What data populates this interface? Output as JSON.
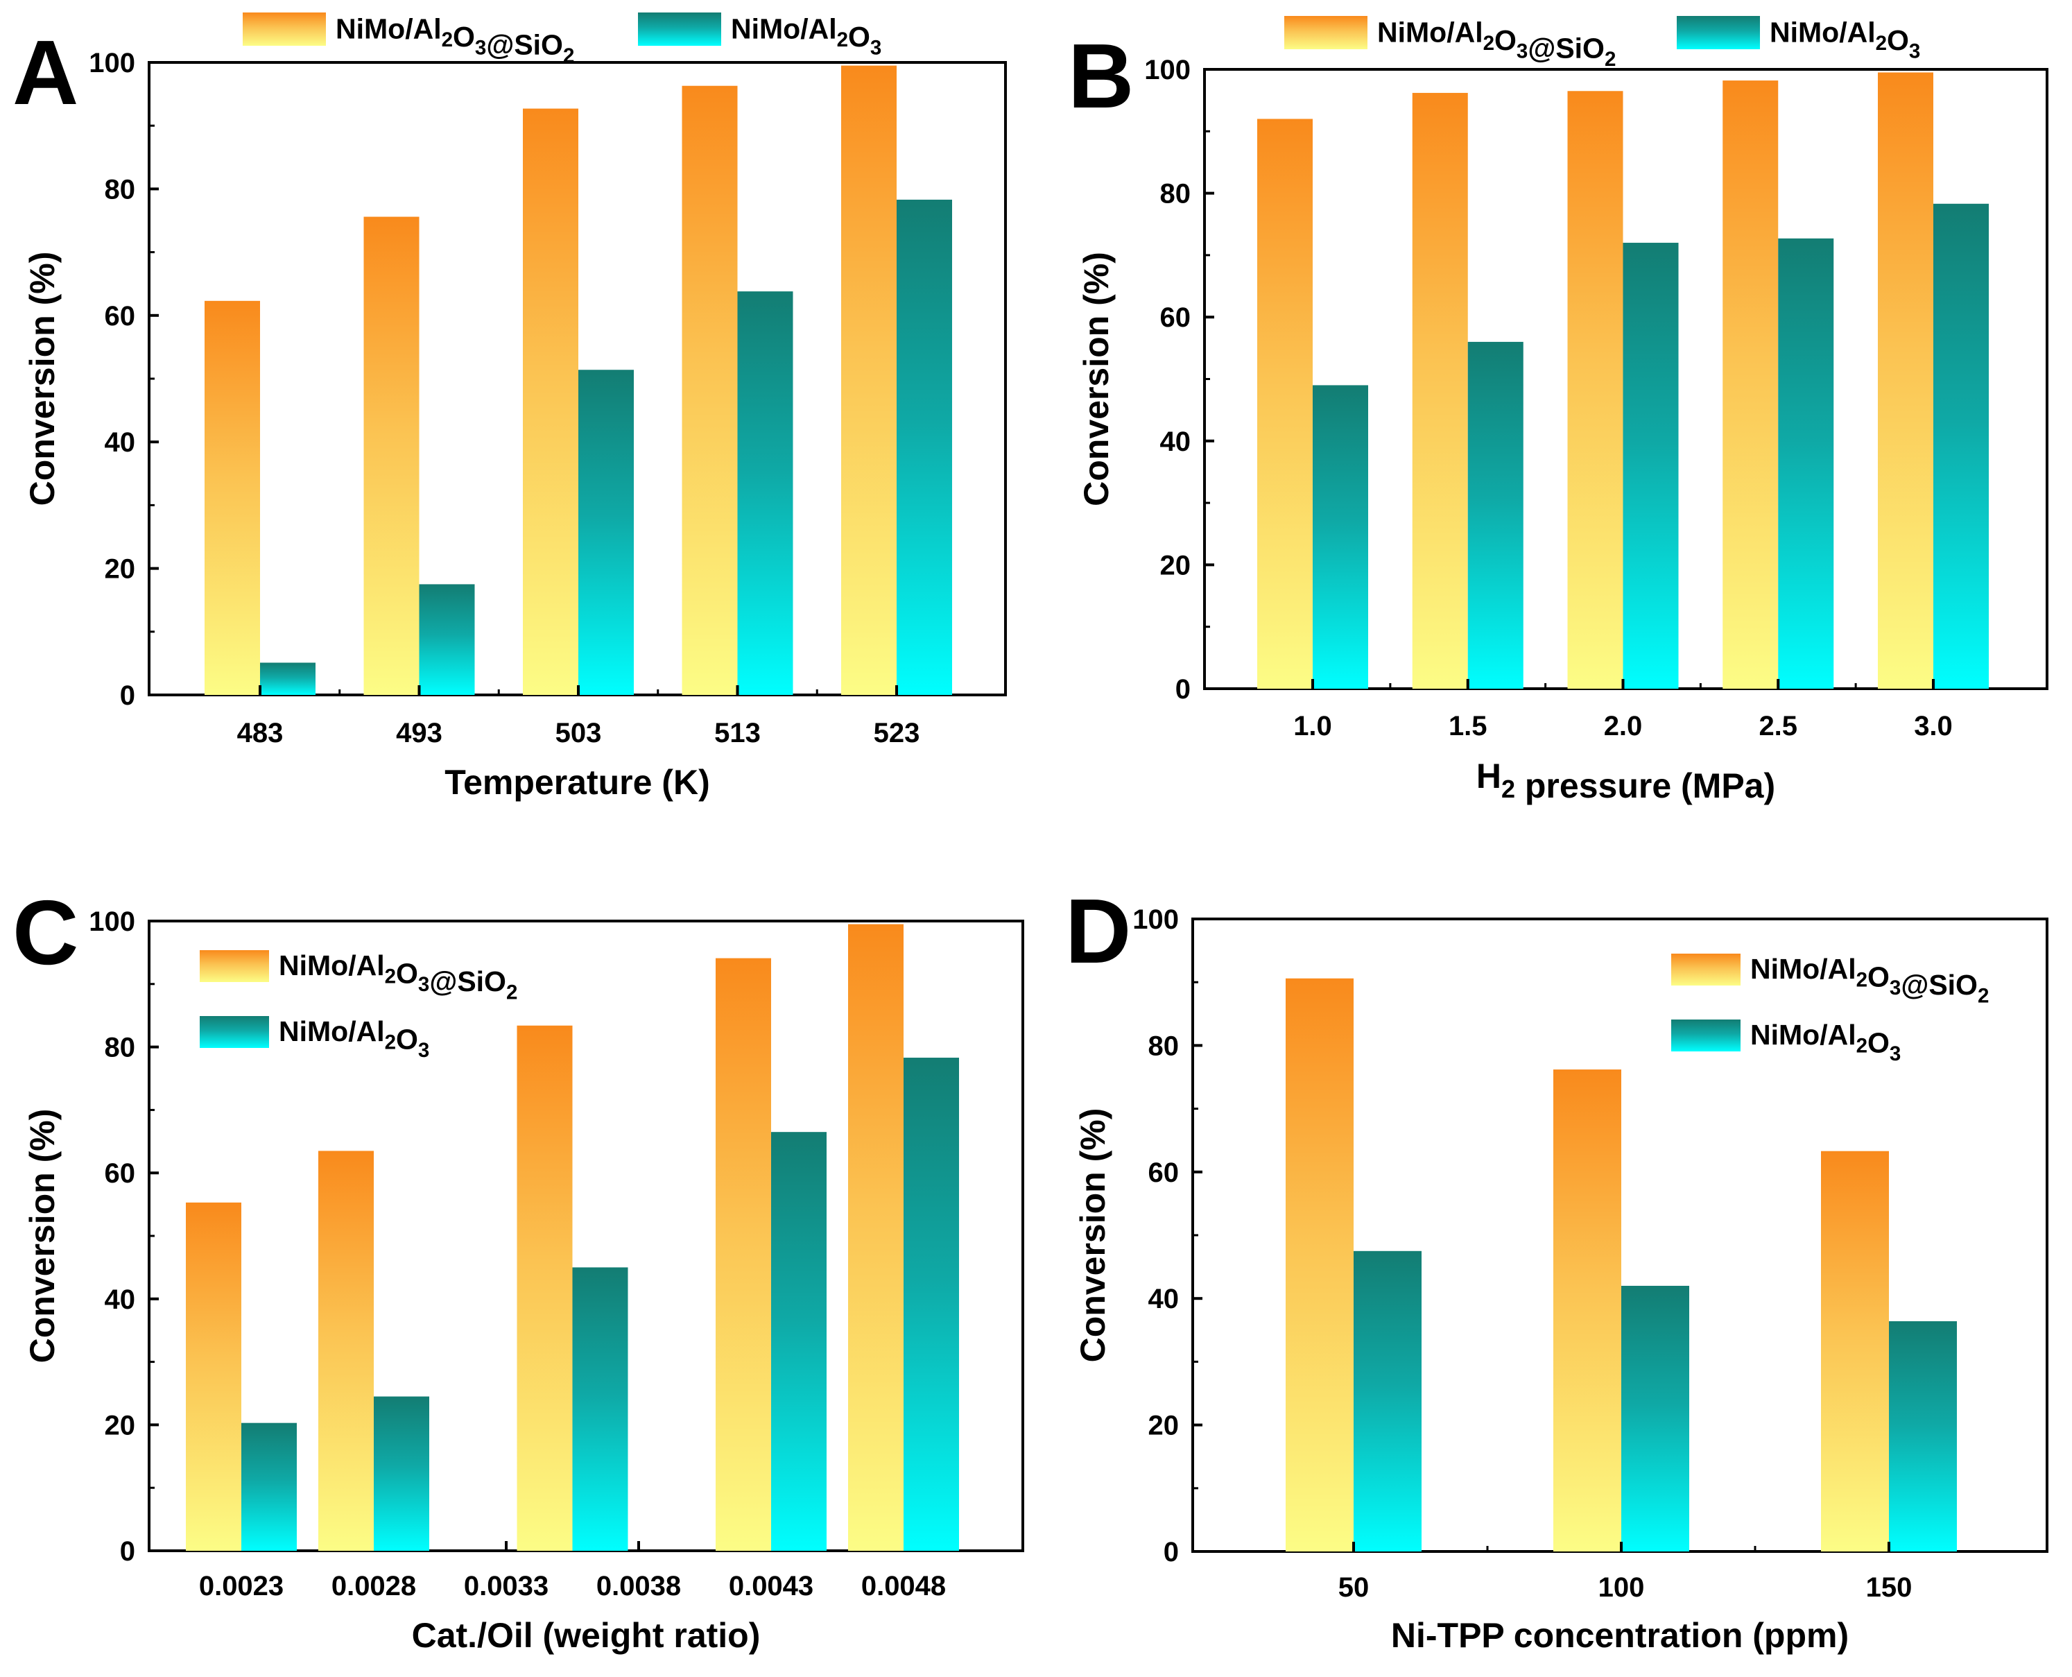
{
  "series_names": [
    "NiMo/Al2O3@SiO2",
    "NiMo/Al2O3"
  ],
  "series_colors": {
    "NiMo/Al2O3@SiO2": {
      "top": "#f98a1c",
      "bottom": "#fcfd86"
    },
    "NiMo/Al2O3": {
      "top": "#137d73",
      "bottom": "#00ffff"
    }
  },
  "chart_data": [
    {
      "type": "bar",
      "panel": "A",
      "xlabel": "Temperature (K)",
      "ylabel": "Conversion (%)",
      "ylim": [
        0,
        100
      ],
      "yticks": [
        0,
        20,
        40,
        60,
        80,
        100
      ],
      "categories": [
        "483",
        "493",
        "503",
        "513",
        "523"
      ],
      "series": [
        {
          "name": "NiMo/Al2O3@SiO2",
          "values": [
            62.3,
            75.6,
            92.7,
            96.3,
            99.5
          ]
        },
        {
          "name": "NiMo/Al2O3",
          "values": [
            5.1,
            17.5,
            51.4,
            63.8,
            78.3
          ]
        }
      ],
      "legend_position": "top-outside"
    },
    {
      "type": "bar",
      "panel": "B",
      "xlabel": "H2 pressure (MPa)",
      "ylabel": "Conversion (%)",
      "ylim": [
        0,
        100
      ],
      "yticks": [
        0,
        20,
        40,
        60,
        80,
        100
      ],
      "categories": [
        "1.0",
        "1.5",
        "2.0",
        "2.5",
        "3.0"
      ],
      "series": [
        {
          "name": "NiMo/Al2O3@SiO2",
          "values": [
            92.0,
            96.2,
            96.5,
            98.2,
            99.5
          ]
        },
        {
          "name": "NiMo/Al2O3",
          "values": [
            49.0,
            56.0,
            72.0,
            72.7,
            78.3
          ]
        }
      ],
      "legend_position": "top-outside"
    },
    {
      "type": "bar",
      "panel": "C",
      "xlabel": "Cat./Oil (weight ratio)",
      "ylabel": "Conversion (%)",
      "ylim": [
        0,
        100
      ],
      "yticks": [
        0,
        20,
        40,
        60,
        80,
        100
      ],
      "categories": [
        "0.0023",
        "0.0028",
        "0.0033",
        "0.0038",
        "0.0043",
        "0.0048"
      ],
      "bar_pairs": [
        {
          "x": 0.0023,
          "values": [
            55.3,
            20.3
          ]
        },
        {
          "x": 0.0028,
          "values": [
            63.5,
            24.5
          ]
        },
        {
          "x": 0.00355,
          "values": [
            83.4,
            45.0
          ]
        },
        {
          "x": 0.0043,
          "values": [
            94.1,
            66.5
          ]
        },
        {
          "x": 0.0048,
          "values": [
            99.5,
            78.3
          ]
        }
      ],
      "legend_position": "top-left"
    },
    {
      "type": "bar",
      "panel": "D",
      "xlabel": "Ni-TPP concentration (ppm)",
      "ylabel": "Conversion (%)",
      "ylim": [
        0,
        100
      ],
      "yticks": [
        0,
        20,
        40,
        60,
        80,
        100
      ],
      "categories": [
        "50",
        "100",
        "150"
      ],
      "series": [
        {
          "name": "NiMo/Al2O3@SiO2",
          "values": [
            90.6,
            76.2,
            63.3
          ]
        },
        {
          "name": "NiMo/Al2O3",
          "values": [
            47.5,
            42.0,
            36.4
          ]
        }
      ],
      "legend_position": "top-right"
    }
  ]
}
